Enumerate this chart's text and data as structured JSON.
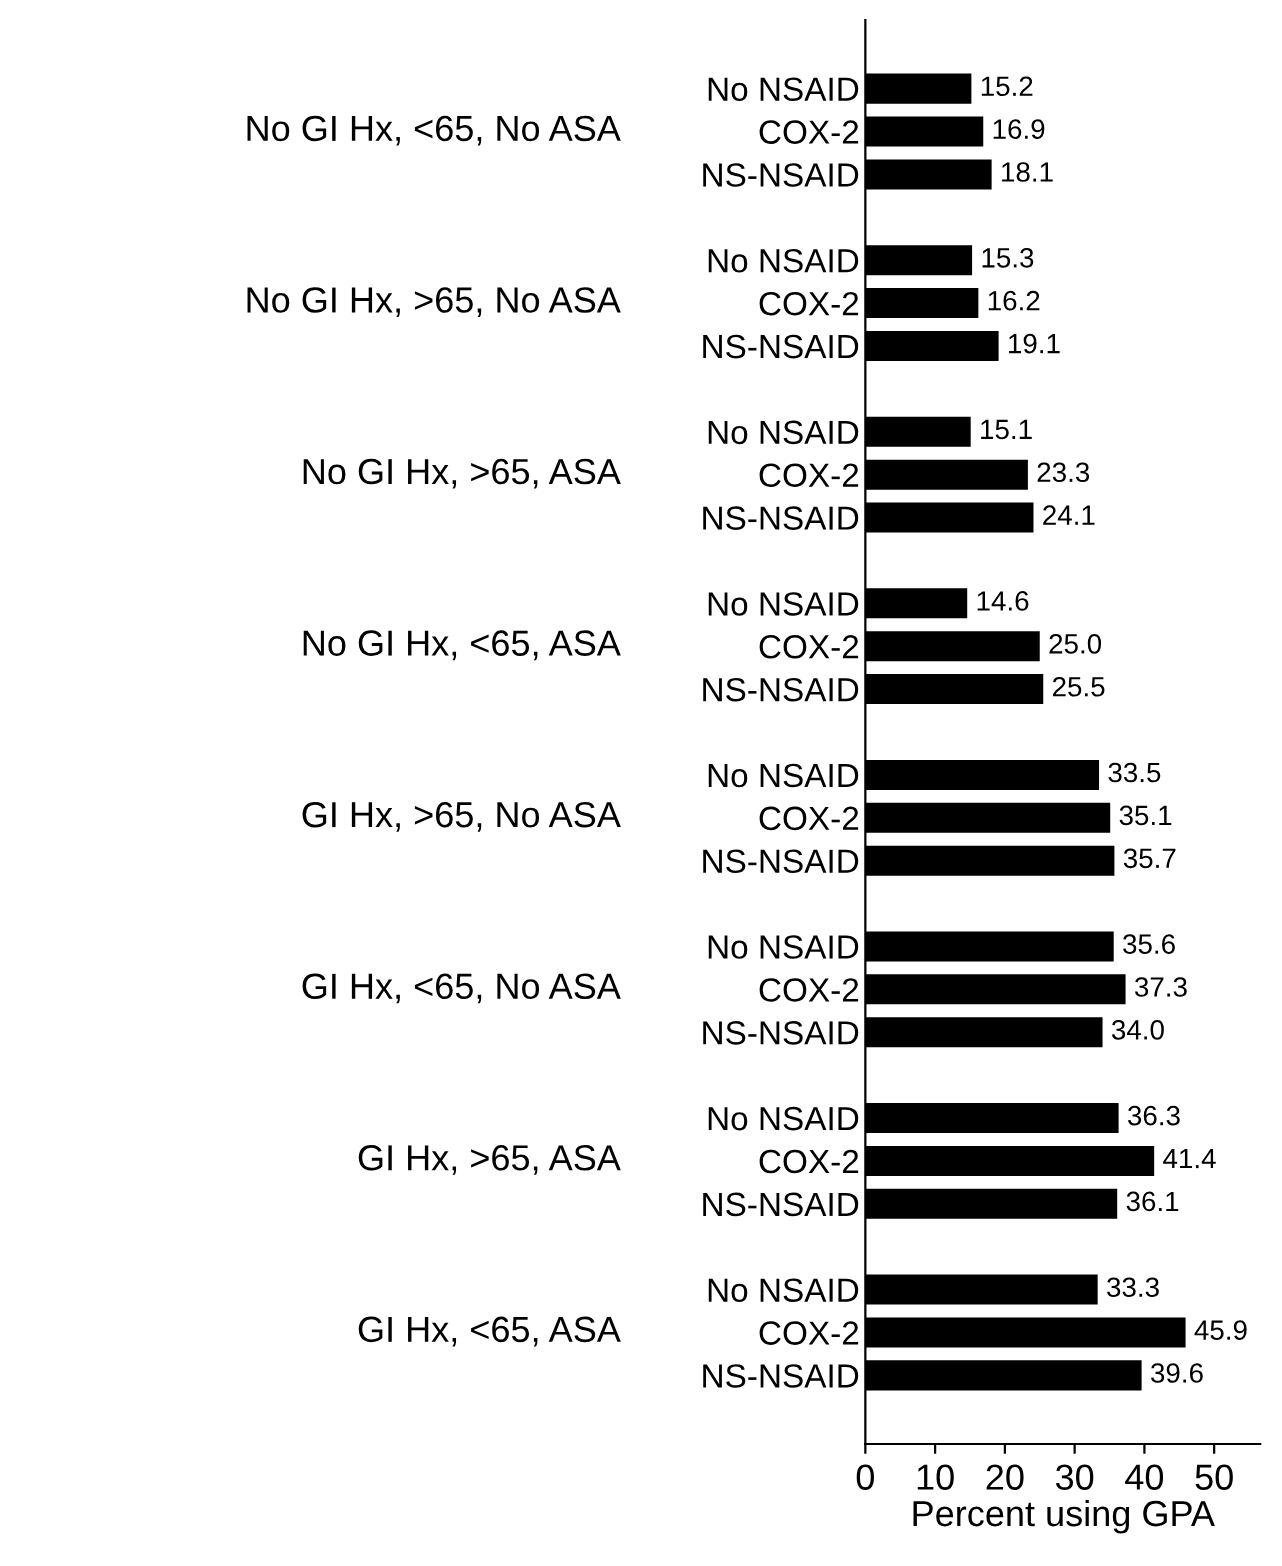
{
  "chart_data": {
    "type": "bar",
    "orientation": "horizontal",
    "xlabel": "Percent using GPA",
    "categories": [
      "No NSAID",
      "COX-2",
      "NS-NSAID",
      "No NSAID",
      "COX-2",
      "NS-NSAID",
      "No NSAID",
      "COX-2",
      "NS-NSAID",
      "No NSAID",
      "COX-2",
      "NS-NSAID",
      "No NSAID",
      "COX-2",
      "NS-NSAID",
      "No NSAID",
      "COX-2",
      "NS-NSAID",
      "No NSAID",
      "COX-2",
      "NS-NSAID",
      "No NSAID",
      "COX-2",
      "NS-NSAID"
    ],
    "values": [
      15.2,
      16.9,
      18.1,
      15.3,
      16.2,
      19.1,
      15.1,
      23.3,
      24.1,
      14.6,
      25.0,
      25.5,
      33.5,
      35.1,
      35.7,
      35.6,
      37.3,
      34.0,
      36.3,
      41.4,
      36.1,
      33.3,
      45.9,
      39.6
    ],
    "value_labels": [
      "15.2",
      "16.9",
      "18.1",
      "15.3",
      "16.2",
      "19.1",
      "15.1",
      "23.3",
      "24.1",
      "14.6",
      "25.0",
      "25.5",
      "33.5",
      "35.1",
      "35.7",
      "35.6",
      "37.3",
      "34.0",
      "36.3",
      "41.4",
      "36.1",
      "33.3",
      "45.9",
      "39.6"
    ],
    "color": "#000000",
    "annotations": [
      "No GI Hx, <65, No ASA",
      "No GI Hx, >65, No ASA",
      "No GI Hx, >65, ASA",
      "No GI Hx, <65, ASA",
      "GI Hx, >65, No ASA",
      "GI Hx, <65, No ASA",
      "GI Hx, >65, ASA",
      "GI Hx, <65, ASA"
    ],
    "xlim": [
      0,
      56.6
    ],
    "xticks": [
      0,
      10,
      20,
      30,
      40,
      50
    ],
    "grid": false,
    "legend": false
  }
}
